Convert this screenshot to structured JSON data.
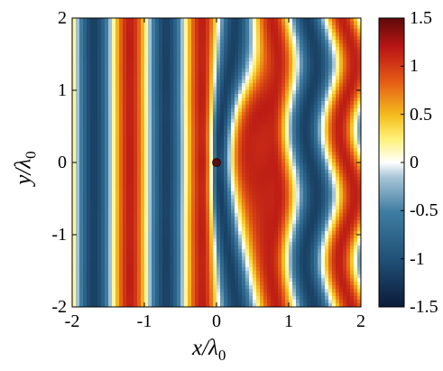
{
  "chart_data": {
    "type": "heatmap",
    "title": "",
    "xlabel_main": "x/",
    "xlabel_sym": "λ",
    "xlabel_sub": "0",
    "ylabel_main": "y/",
    "ylabel_sym": "λ",
    "ylabel_sub": "0",
    "xlim": [
      -2,
      2
    ],
    "ylim": [
      -2,
      2
    ],
    "xticks": [
      -2,
      -1,
      0,
      1,
      2
    ],
    "yticks": [
      -2,
      -1,
      0,
      1,
      2
    ],
    "xtick_labels": [
      "-2",
      "-1",
      "0",
      "1",
      "2"
    ],
    "ytick_labels": [
      "-2",
      "-1",
      "0",
      "1",
      "2"
    ],
    "colorbar": {
      "range": [
        -1.5,
        1.5
      ],
      "ticks": [
        1.5,
        1,
        0.5,
        0,
        -0.5,
        -1,
        -1.5
      ],
      "tick_labels": [
        "1.5",
        "1",
        "0.5",
        "0",
        "-0.5",
        "-1",
        "-1.5"
      ],
      "colormap": "jet-like: dark navy → steel blue → white → yellow → orange → red → dark red"
    },
    "field": {
      "description": "vertical plane-wave stripes with period 1 wavelength; red crests near x = -1.8, -1.0, -0.2, 0.8, 1.6 and blue troughs near x = -1.4, -0.6, 0.4, 1.2, 1.8; small dark circular scatterer at (0, 0) distorting the stripes to its right",
      "scatterer": {
        "x": 0,
        "y": 0,
        "r": 0.055
      }
    }
  }
}
